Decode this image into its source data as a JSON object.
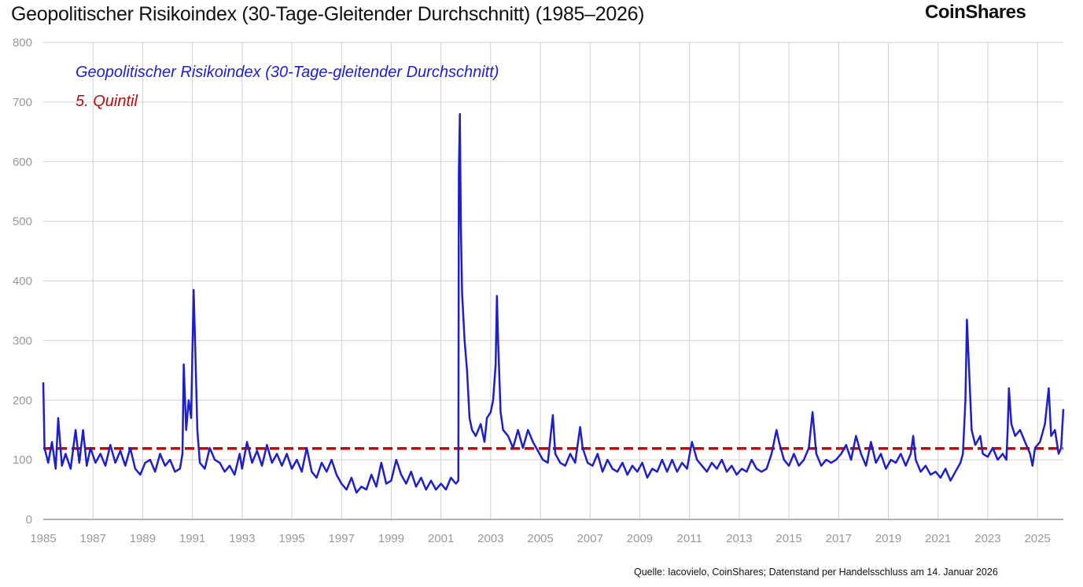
{
  "header": {
    "title": "Geopolitischer Risikoindex (30-Tage-Gleitender Durchschnitt) (1985–2026)",
    "logo": "CoinShares"
  },
  "footer": {
    "source": "Quelle: Iacovielo, CoinShares; Datenstand per Handelsschluss am 14. Januar 2026"
  },
  "chart_data": {
    "type": "line",
    "title": "Geopolitischer Risikoindex (30-Tage-Gleitender Durchschnitt) (1985–2026)",
    "xlabel": "",
    "ylabel": "",
    "xlim": [
      1985,
      2026.04
    ],
    "ylim": [
      0,
      800
    ],
    "grid": true,
    "legend_placement": "top-left",
    "x_ticks": [
      "1985",
      "1987",
      "1989",
      "1991",
      "1993",
      "1995",
      "1997",
      "1999",
      "2001",
      "2003",
      "2005",
      "2007",
      "2009",
      "2011",
      "2013",
      "2015",
      "2017",
      "2019",
      "2021",
      "2023",
      "2025"
    ],
    "y_ticks": [
      "0",
      "100",
      "200",
      "300",
      "400",
      "500",
      "600",
      "700",
      "800"
    ],
    "colors": {
      "series": "#1f1fc8",
      "quintile": "#b01010"
    },
    "series": [
      {
        "name": "Geopolitischer Risikoindex (30-Tage-gleitender Durchschnitt)",
        "x": [
          1985.0,
          1985.05,
          1985.2,
          1985.35,
          1985.5,
          1985.6,
          1985.75,
          1985.9,
          1986.1,
          1986.3,
          1986.45,
          1986.6,
          1986.75,
          1986.9,
          1987.1,
          1987.3,
          1987.5,
          1987.7,
          1987.9,
          1988.1,
          1988.3,
          1988.5,
          1988.7,
          1988.9,
          1989.1,
          1989.3,
          1989.5,
          1989.7,
          1989.9,
          1990.1,
          1990.3,
          1990.5,
          1990.6,
          1990.65,
          1990.75,
          1990.85,
          1990.95,
          1991.05,
          1991.12,
          1991.2,
          1991.3,
          1991.5,
          1991.7,
          1991.9,
          1992.1,
          1992.3,
          1992.5,
          1992.7,
          1992.9,
          1993.0,
          1993.2,
          1993.4,
          1993.6,
          1993.8,
          1994.0,
          1994.2,
          1994.4,
          1994.6,
          1994.8,
          1995.0,
          1995.2,
          1995.4,
          1995.6,
          1995.8,
          1996.0,
          1996.2,
          1996.4,
          1996.6,
          1996.8,
          1997.0,
          1997.2,
          1997.4,
          1997.6,
          1997.8,
          1998.0,
          1998.2,
          1998.4,
          1998.6,
          1998.8,
          1999.0,
          1999.2,
          1999.4,
          1999.6,
          1999.8,
          2000.0,
          2000.2,
          2000.4,
          2000.6,
          2000.8,
          2001.0,
          2001.2,
          2001.4,
          2001.6,
          2001.7,
          2001.72,
          2001.76,
          2001.8,
          2001.85,
          2001.95,
          2002.05,
          2002.15,
          2002.25,
          2002.4,
          2002.6,
          2002.75,
          2002.85,
          2003.0,
          2003.1,
          2003.2,
          2003.25,
          2003.3,
          2003.4,
          2003.5,
          2003.7,
          2003.9,
          2004.1,
          2004.3,
          2004.5,
          2004.7,
          2004.9,
          2005.1,
          2005.3,
          2005.5,
          2005.6,
          2005.8,
          2006.0,
          2006.2,
          2006.4,
          2006.6,
          2006.7,
          2006.9,
          2007.1,
          2007.3,
          2007.5,
          2007.7,
          2007.9,
          2008.1,
          2008.3,
          2008.5,
          2008.7,
          2008.9,
          2009.1,
          2009.3,
          2009.5,
          2009.7,
          2009.9,
          2010.1,
          2010.3,
          2010.5,
          2010.7,
          2010.9,
          2011.1,
          2011.3,
          2011.5,
          2011.7,
          2011.9,
          2012.1,
          2012.3,
          2012.5,
          2012.7,
          2012.9,
          2013.1,
          2013.3,
          2013.5,
          2013.7,
          2013.9,
          2014.1,
          2014.3,
          2014.5,
          2014.6,
          2014.8,
          2015.0,
          2015.2,
          2015.4,
          2015.6,
          2015.8,
          2015.95,
          2016.1,
          2016.3,
          2016.5,
          2016.7,
          2016.9,
          2017.1,
          2017.3,
          2017.5,
          2017.7,
          2017.9,
          2018.1,
          2018.3,
          2018.5,
          2018.7,
          2018.9,
          2019.1,
          2019.3,
          2019.5,
          2019.7,
          2019.9,
          2020.0,
          2020.1,
          2020.3,
          2020.5,
          2020.7,
          2020.9,
          2021.1,
          2021.3,
          2021.5,
          2021.7,
          2021.9,
          2022.0,
          2022.1,
          2022.16,
          2022.25,
          2022.35,
          2022.5,
          2022.7,
          2022.8,
          2023.0,
          2023.2,
          2023.4,
          2023.6,
          2023.75,
          2023.8,
          2023.85,
          2023.95,
          2024.1,
          2024.3,
          2024.5,
          2024.7,
          2024.8,
          2024.9,
          2025.1,
          2025.3,
          2025.45,
          2025.55,
          2025.7,
          2025.85,
          2025.95,
          2026.04
        ],
        "y": [
          230,
          120,
          95,
          130,
          85,
          170,
          90,
          110,
          85,
          150,
          95,
          150,
          90,
          120,
          95,
          110,
          90,
          125,
          95,
          115,
          90,
          120,
          85,
          75,
          95,
          100,
          80,
          110,
          90,
          100,
          80,
          85,
          110,
          260,
          150,
          200,
          170,
          385,
          280,
          150,
          95,
          85,
          120,
          100,
          95,
          80,
          90,
          75,
          110,
          85,
          130,
          95,
          115,
          90,
          125,
          95,
          110,
          90,
          110,
          85,
          100,
          80,
          120,
          80,
          70,
          95,
          80,
          100,
          75,
          60,
          50,
          70,
          45,
          55,
          50,
          75,
          55,
          95,
          60,
          65,
          100,
          75,
          60,
          80,
          55,
          70,
          50,
          65,
          50,
          60,
          50,
          70,
          60,
          65,
          580,
          680,
          500,
          380,
          300,
          250,
          170,
          150,
          140,
          160,
          130,
          170,
          180,
          200,
          260,
          375,
          300,
          180,
          150,
          140,
          120,
          150,
          120,
          150,
          130,
          115,
          100,
          95,
          175,
          110,
          95,
          90,
          110,
          95,
          155,
          120,
          95,
          90,
          110,
          80,
          100,
          85,
          80,
          95,
          75,
          90,
          80,
          95,
          70,
          85,
          80,
          100,
          80,
          100,
          80,
          95,
          85,
          130,
          100,
          90,
          80,
          95,
          85,
          100,
          80,
          90,
          75,
          85,
          80,
          100,
          85,
          80,
          85,
          110,
          150,
          130,
          100,
          90,
          110,
          90,
          100,
          120,
          180,
          110,
          90,
          100,
          95,
          100,
          110,
          125,
          100,
          140,
          110,
          90,
          130,
          95,
          110,
          85,
          100,
          95,
          110,
          90,
          110,
          140,
          100,
          80,
          90,
          75,
          80,
          70,
          85,
          65,
          80,
          95,
          110,
          200,
          335,
          250,
          150,
          125,
          140,
          110,
          105,
          120,
          100,
          110,
          100,
          150,
          220,
          160,
          140,
          150,
          130,
          110,
          90,
          120,
          130,
          160,
          220,
          140,
          150,
          110,
          120,
          185
        ]
      },
      {
        "name": "5. Quintil",
        "x": [
          1985,
          2026.04
        ],
        "y": [
          119,
          119
        ]
      }
    ]
  }
}
